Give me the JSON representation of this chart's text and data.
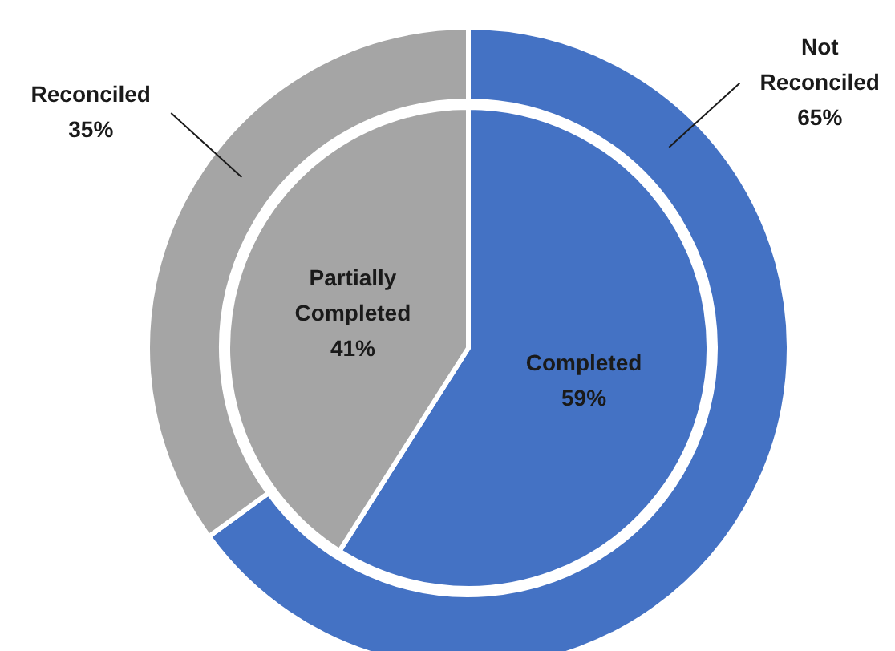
{
  "chart_data": [
    {
      "type": "pie",
      "categories": [
        "Completed",
        "Partially Completed"
      ],
      "values": [
        59,
        41
      ],
      "colors": [
        "#4472c4",
        "#a5a5a5"
      ],
      "value_labels": [
        "59%",
        "41%"
      ]
    },
    {
      "type": "donut",
      "categories": [
        "Not Reconciled",
        "Reconciled"
      ],
      "values": [
        65,
        35
      ],
      "colors": [
        "#4472c4",
        "#a5a5a5"
      ],
      "value_labels": [
        "65%",
        "35%"
      ]
    }
  ]
}
